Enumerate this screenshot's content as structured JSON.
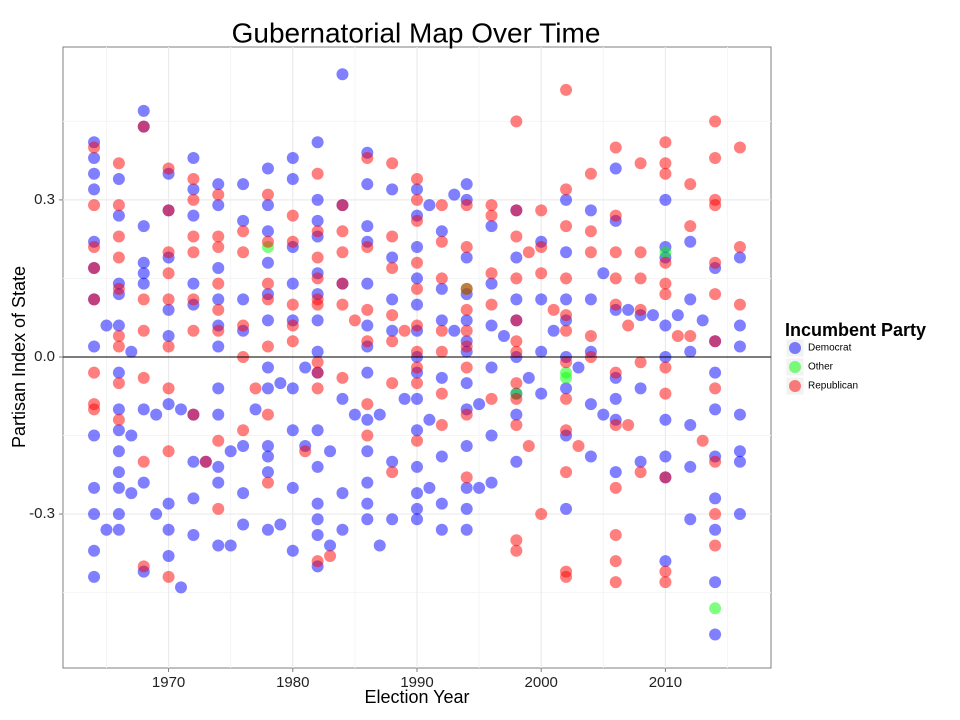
{
  "chart_data": {
    "type": "scatter",
    "title": "Gubernatorial Map Over Time",
    "x_label": "Election Year",
    "y_label": "Partisan Index of State",
    "xlim": [
      1961.5,
      2018.5
    ],
    "ylim": [
      -0.594,
      0.592
    ],
    "xticks": [
      1970,
      1980,
      1990,
      2000,
      2010
    ],
    "yticks": [
      {
        "value": -0.3,
        "label": "-0.3"
      },
      {
        "value": 0,
        "label": "0.0"
      },
      {
        "value": 0.3,
        "label": "0.3"
      }
    ],
    "hline": 0,
    "grid": true,
    "legend_title": "Incumbent Party",
    "legend_position": "right",
    "series": [
      {
        "name": "Democrat",
        "color": "#0000ff",
        "x": [
          1964,
          1964,
          1964,
          1964,
          1964,
          1964,
          1964,
          1964,
          1964,
          1964,
          1964,
          1964,
          1964,
          1965,
          1965,
          1966,
          1966,
          1966,
          1966,
          1966,
          1966,
          1966,
          1966,
          1966,
          1966,
          1966,
          1966,
          1966,
          1967,
          1967,
          1967,
          1968,
          1968,
          1968,
          1968,
          1968,
          1968,
          1968,
          1968,
          1968,
          1969,
          1969,
          1970,
          1970,
          1970,
          1970,
          1970,
          1970,
          1970,
          1970,
          1970,
          1971,
          1971,
          1972,
          1972,
          1972,
          1972,
          1972,
          1972,
          1972,
          1972,
          1972,
          1973,
          1974,
          1974,
          1974,
          1974,
          1974,
          1974,
          1974,
          1974,
          1974,
          1974,
          1974,
          1975,
          1975,
          1976,
          1976,
          1976,
          1976,
          1976,
          1976,
          1976,
          1977,
          1978,
          1978,
          1978,
          1978,
          1978,
          1978,
          1978,
          1978,
          1978,
          1978,
          1978,
          1978,
          1979,
          1979,
          1980,
          1980,
          1980,
          1980,
          1980,
          1980,
          1980,
          1980,
          1980,
          1981,
          1981,
          1982,
          1982,
          1982,
          1982,
          1982,
          1982,
          1982,
          1982,
          1982,
          1982,
          1982,
          1982,
          1982,
          1982,
          1982,
          1983,
          1983,
          1984,
          1984,
          1984,
          1984,
          1984,
          1984,
          1985,
          1986,
          1986,
          1986,
          1986,
          1986,
          1986,
          1986,
          1986,
          1986,
          1986,
          1986,
          1986,
          1986,
          1987,
          1987,
          1988,
          1988,
          1988,
          1988,
          1988,
          1988,
          1989,
          1990,
          1990,
          1990,
          1990,
          1990,
          1990,
          1990,
          1990,
          1990,
          1990,
          1990,
          1990,
          1990,
          1990,
          1991,
          1991,
          1991,
          1992,
          1992,
          1992,
          1992,
          1992,
          1992,
          1992,
          1993,
          1993,
          1994,
          1994,
          1994,
          1994,
          1994,
          1994,
          1994,
          1994,
          1994,
          1994,
          1994,
          1994,
          1994,
          1995,
          1995,
          1996,
          1996,
          1996,
          1996,
          1996,
          1996,
          1997,
          1998,
          1998,
          1998,
          1998,
          1998,
          1998,
          1998,
          1998,
          1999,
          2000,
          2000,
          2000,
          2000,
          2001,
          2002,
          2002,
          2002,
          2002,
          2002,
          2002,
          2002,
          2002,
          2003,
          2004,
          2004,
          2004,
          2004,
          2004,
          2005,
          2005,
          2006,
          2006,
          2006,
          2006,
          2006,
          2006,
          2006,
          2007,
          2008,
          2008,
          2008,
          2009,
          2010,
          2010,
          2010,
          2010,
          2010,
          2010,
          2010,
          2010,
          2010,
          2011,
          2012,
          2012,
          2012,
          2012,
          2012,
          2012,
          2013,
          2014,
          2014,
          2014,
          2014,
          2014,
          2014,
          2014,
          2014,
          2014,
          2016,
          2016,
          2016,
          2016,
          2016,
          2016,
          2016
        ],
        "values": [
          0.41,
          0.38,
          0.35,
          0.32,
          0.22,
          0.17,
          0.11,
          0.02,
          -0.15,
          -0.25,
          -0.3,
          -0.37,
          -0.42,
          0.06,
          -0.33,
          0.34,
          0.27,
          0.14,
          0.12,
          0.06,
          -0.03,
          -0.1,
          -0.14,
          -0.18,
          -0.22,
          -0.25,
          -0.3,
          -0.33,
          0.01,
          -0.15,
          -0.26,
          0.47,
          0.44,
          0.25,
          0.18,
          0.16,
          0.14,
          -0.1,
          -0.24,
          -0.41,
          -0.11,
          -0.3,
          0.35,
          0.28,
          0.19,
          0.09,
          0.04,
          -0.09,
          -0.28,
          -0.33,
          -0.38,
          -0.1,
          -0.44,
          0.38,
          0.32,
          0.27,
          0.14,
          0.1,
          -0.11,
          -0.2,
          -0.27,
          -0.34,
          -0.2,
          0.33,
          0.29,
          0.17,
          0.11,
          0.06,
          0.02,
          -0.06,
          -0.11,
          -0.21,
          -0.24,
          -0.36,
          -0.18,
          -0.36,
          0.33,
          0.26,
          0.11,
          0.05,
          -0.17,
          -0.26,
          -0.32,
          -0.1,
          0.36,
          0.29,
          0.24,
          0.18,
          0.12,
          0.07,
          -0.02,
          -0.06,
          -0.17,
          -0.19,
          -0.22,
          -0.33,
          -0.05,
          -0.32,
          0.38,
          0.34,
          0.21,
          0.14,
          0.07,
          -0.06,
          -0.14,
          -0.25,
          -0.37,
          -0.02,
          -0.17,
          0.41,
          0.3,
          0.26,
          0.23,
          0.16,
          0.12,
          0.07,
          0.01,
          -0.03,
          -0.14,
          -0.21,
          -0.28,
          -0.31,
          -0.34,
          -0.4,
          -0.18,
          -0.36,
          0.54,
          0.29,
          0.14,
          -0.08,
          -0.26,
          -0.33,
          -0.11,
          0.39,
          0.33,
          0.25,
          0.22,
          0.14,
          0.06,
          0.02,
          -0.03,
          -0.12,
          -0.18,
          -0.24,
          -0.28,
          -0.31,
          -0.11,
          -0.36,
          0.32,
          0.19,
          0.11,
          0.05,
          -0.2,
          -0.31,
          -0.08,
          0.32,
          0.27,
          0.21,
          0.15,
          0.1,
          0.05,
          0.0,
          -0.03,
          -0.08,
          -0.14,
          -0.21,
          -0.26,
          -0.29,
          -0.31,
          0.29,
          -0.12,
          -0.25,
          0.24,
          0.13,
          0.07,
          -0.04,
          -0.19,
          -0.28,
          -0.33,
          0.31,
          0.05,
          0.33,
          0.3,
          0.19,
          0.12,
          0.07,
          0.03,
          0.01,
          -0.05,
          -0.1,
          -0.17,
          -0.25,
          -0.29,
          -0.33,
          -0.09,
          -0.25,
          0.25,
          0.14,
          0.06,
          -0.02,
          -0.15,
          -0.24,
          0.04,
          0.28,
          0.19,
          0.11,
          0.07,
          0.0,
          -0.07,
          -0.11,
          -0.2,
          -0.04,
          0.22,
          0.11,
          0.01,
          -0.07,
          0.05,
          0.3,
          0.2,
          0.11,
          0.07,
          0.0,
          -0.06,
          -0.15,
          -0.29,
          -0.02,
          0.28,
          0.11,
          0.01,
          -0.09,
          -0.19,
          0.16,
          -0.11,
          0.36,
          0.26,
          0.09,
          -0.04,
          -0.08,
          -0.12,
          -0.22,
          0.09,
          0.08,
          -0.06,
          -0.2,
          0.08,
          0.3,
          0.21,
          0.19,
          0.06,
          0.0,
          -0.12,
          -0.19,
          -0.23,
          -0.39,
          0.08,
          0.22,
          0.11,
          0.01,
          -0.13,
          -0.21,
          -0.31,
          0.07,
          0.17,
          0.03,
          -0.03,
          -0.1,
          -0.19,
          -0.27,
          -0.33,
          -0.43,
          -0.53,
          0.19,
          0.06,
          0.02,
          -0.11,
          -0.18,
          -0.2,
          -0.3
        ]
      },
      {
        "name": "Other",
        "color": "#00ff00",
        "x": [
          1978,
          1994,
          1998,
          2002,
          2002,
          2010,
          2014
        ],
        "values": [
          0.21,
          0.13,
          -0.07,
          -0.03,
          -0.04,
          0.2,
          -0.48
        ]
      },
      {
        "name": "Republican",
        "color": "#ff0000",
        "x": [
          1964,
          1964,
          1964,
          1964,
          1964,
          1964,
          1964,
          1964,
          1966,
          1966,
          1966,
          1966,
          1966,
          1966,
          1966,
          1966,
          1966,
          1968,
          1968,
          1968,
          1968,
          1968,
          1968,
          1970,
          1970,
          1970,
          1970,
          1970,
          1970,
          1970,
          1970,
          1970,
          1972,
          1972,
          1972,
          1972,
          1972,
          1972,
          1972,
          1973,
          1974,
          1974,
          1974,
          1974,
          1974,
          1974,
          1974,
          1974,
          1976,
          1976,
          1976,
          1976,
          1976,
          1977,
          1978,
          1978,
          1978,
          1978,
          1978,
          1978,
          1978,
          1980,
          1980,
          1980,
          1980,
          1980,
          1981,
          1982,
          1982,
          1982,
          1982,
          1982,
          1982,
          1982,
          1982,
          1982,
          1982,
          1983,
          1984,
          1984,
          1984,
          1984,
          1984,
          1984,
          1985,
          1986,
          1986,
          1986,
          1986,
          1986,
          1986,
          1988,
          1988,
          1988,
          1988,
          1988,
          1988,
          1988,
          1989,
          1990,
          1990,
          1990,
          1990,
          1990,
          1990,
          1990,
          1990,
          1990,
          1990,
          1992,
          1992,
          1992,
          1992,
          1992,
          1992,
          1992,
          1994,
          1994,
          1994,
          1994,
          1994,
          1994,
          1994,
          1994,
          1994,
          1996,
          1996,
          1996,
          1996,
          1996,
          1998,
          1998,
          1998,
          1998,
          1998,
          1998,
          1998,
          1998,
          1998,
          1998,
          1998,
          1998,
          1999,
          1999,
          2000,
          2000,
          2000,
          2000,
          2001,
          2002,
          2002,
          2002,
          2002,
          2002,
          2002,
          2002,
          2002,
          2002,
          2002,
          2002,
          2002,
          2003,
          2004,
          2004,
          2004,
          2004,
          2004,
          2006,
          2006,
          2006,
          2006,
          2006,
          2006,
          2006,
          2006,
          2006,
          2006,
          2006,
          2007,
          2007,
          2008,
          2008,
          2008,
          2008,
          2008,
          2008,
          2010,
          2010,
          2010,
          2010,
          2010,
          2010,
          2010,
          2010,
          2010,
          2010,
          2010,
          2011,
          2012,
          2012,
          2012,
          2013,
          2014,
          2014,
          2014,
          2014,
          2014,
          2014,
          2014,
          2014,
          2014,
          2014,
          2014,
          2016,
          2016,
          2016
        ],
        "values": [
          0.4,
          0.29,
          0.21,
          0.17,
          0.11,
          -0.03,
          -0.09,
          -0.1,
          0.37,
          0.29,
          0.23,
          0.19,
          0.13,
          0.04,
          0.02,
          -0.05,
          -0.12,
          0.44,
          0.11,
          0.05,
          -0.04,
          -0.2,
          -0.4,
          0.36,
          0.28,
          0.2,
          0.16,
          0.11,
          0.02,
          -0.06,
          -0.18,
          -0.42,
          0.34,
          0.3,
          0.23,
          0.2,
          0.11,
          0.05,
          -0.11,
          -0.2,
          0.31,
          0.23,
          0.21,
          0.14,
          0.09,
          0.05,
          -0.16,
          -0.29,
          0.24,
          0.2,
          0.06,
          0.0,
          -0.14,
          -0.06,
          0.31,
          0.22,
          0.14,
          0.11,
          0.02,
          -0.11,
          -0.24,
          0.27,
          0.22,
          0.1,
          0.06,
          0.03,
          -0.18,
          0.35,
          0.24,
          0.19,
          0.15,
          0.11,
          0.1,
          -0.01,
          -0.03,
          -0.06,
          -0.39,
          -0.38,
          0.29,
          0.24,
          0.2,
          0.14,
          0.1,
          -0.04,
          0.07,
          0.38,
          0.21,
          0.09,
          0.03,
          -0.09,
          -0.15,
          0.37,
          0.23,
          0.17,
          0.08,
          0.03,
          -0.05,
          -0.22,
          0.05,
          0.34,
          0.3,
          0.26,
          0.18,
          0.13,
          0.06,
          0.01,
          -0.02,
          -0.05,
          -0.16,
          0.29,
          0.22,
          0.15,
          0.05,
          0.01,
          -0.07,
          -0.13,
          0.29,
          0.21,
          0.13,
          0.09,
          0.05,
          0.02,
          -0.02,
          -0.11,
          -0.23,
          0.29,
          0.27,
          0.16,
          0.1,
          -0.08,
          0.45,
          0.28,
          0.23,
          0.15,
          0.07,
          0.03,
          0.01,
          -0.05,
          -0.08,
          -0.13,
          -0.35,
          -0.37,
          0.2,
          -0.17,
          0.28,
          0.21,
          0.16,
          -0.3,
          0.09,
          0.51,
          0.32,
          0.25,
          0.15,
          0.08,
          0.05,
          -0.01,
          -0.08,
          -0.14,
          -0.22,
          -0.41,
          -0.42,
          -0.17,
          0.35,
          0.24,
          0.2,
          0.04,
          0.0,
          0.4,
          0.27,
          0.2,
          0.15,
          0.1,
          -0.03,
          -0.13,
          -0.25,
          -0.34,
          -0.39,
          -0.43,
          0.06,
          -0.13,
          0.37,
          0.2,
          0.15,
          0.09,
          -0.01,
          -0.22,
          0.41,
          0.37,
          0.35,
          0.18,
          0.14,
          0.12,
          -0.02,
          -0.07,
          -0.23,
          -0.41,
          -0.43,
          0.04,
          0.33,
          0.25,
          0.04,
          -0.16,
          0.45,
          0.38,
          0.3,
          0.29,
          0.18,
          0.12,
          0.03,
          -0.06,
          -0.2,
          -0.3,
          -0.36,
          0.4,
          0.21,
          0.1
        ]
      }
    ]
  }
}
